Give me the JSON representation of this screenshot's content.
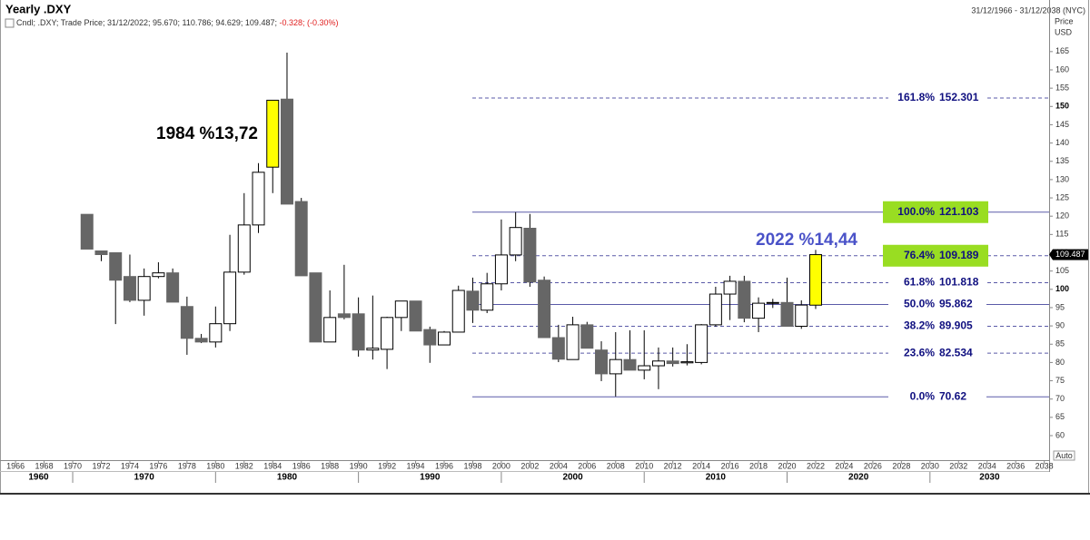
{
  "chart_data": {
    "type": "candlestick",
    "title": "Yearly .DXY",
    "date_range": "31/12/1966 - 31/12/2038 (NYC)",
    "legend_text": "Cndl; .DXY; Trade Price; 31/12/2022; 95.670; 110.786; 94.629; 109.487;",
    "legend_change": "-0.328; (-0.30%)",
    "y_axis_label": "Price",
    "y_axis_unit": "USD",
    "auto_label": "Auto",
    "x": [
      1971,
      1972,
      1973,
      1974,
      1975,
      1976,
      1977,
      1978,
      1979,
      1980,
      1981,
      1982,
      1983,
      1984,
      1985,
      1986,
      1987,
      1988,
      1989,
      1990,
      1991,
      1992,
      1993,
      1994,
      1995,
      1996,
      1997,
      1998,
      1999,
      2000,
      2001,
      2002,
      2003,
      2004,
      2005,
      2006,
      2007,
      2008,
      2009,
      2010,
      2011,
      2012,
      2013,
      2014,
      2015,
      2016,
      2017,
      2018,
      2019,
      2020,
      2021,
      2022
    ],
    "open": [
      120.5,
      110.5,
      110,
      103.5,
      97,
      103.5,
      104.5,
      95.3,
      86.6,
      85.6,
      90.6,
      104.7,
      117.6,
      133.4,
      152,
      124,
      104.5,
      85.6,
      93.3,
      93.3,
      83.4,
      83.6,
      92.3,
      96.8,
      89,
      84.8,
      88.3,
      99.5,
      94.3,
      101.5,
      109.4,
      116.7,
      102.5,
      86.8,
      80.8,
      90.3,
      83.4,
      76.9,
      80.8,
      77.9,
      79.1,
      80.4,
      79.9,
      80,
      90.3,
      98.7,
      102.2,
      92.1,
      96.2,
      96.4,
      89.9,
      95.67
    ],
    "high": [
      120.5,
      110.5,
      110,
      109.5,
      105.7,
      107.4,
      105.7,
      98,
      87.8,
      95.3,
      114.9,
      126.3,
      134.5,
      151.8,
      164.7,
      125,
      104.5,
      99.7,
      106.7,
      97.8,
      98.3,
      92.5,
      96.8,
      96.8,
      89.8,
      88.6,
      101,
      103.2,
      104.5,
      119.1,
      121.1,
      120.6,
      103.5,
      90.3,
      92.5,
      91.1,
      85.8,
      88.3,
      88.8,
      88.8,
      84.1,
      84.1,
      85,
      90.5,
      100.7,
      103.7,
      103.7,
      97.8,
      97.4,
      103.2,
      97,
      110.786
    ],
    "low": [
      111,
      107.7,
      90.5,
      96.5,
      92.8,
      103,
      96.5,
      82.1,
      85.3,
      84.1,
      88.6,
      104,
      115.4,
      126.3,
      123.3,
      103.7,
      85.6,
      85.6,
      91.8,
      81.6,
      80.8,
      78.2,
      88.6,
      88.6,
      79.9,
      84.8,
      88.3,
      90.8,
      93.5,
      99.7,
      107.7,
      100.7,
      86.8,
      80.1,
      80.8,
      83.9,
      74.9,
      70.7,
      77.9,
      75.4,
      72.7,
      78.9,
      79.2,
      79.5,
      89.8,
      91.6,
      91,
      88.3,
      94.9,
      89.9,
      89.2,
      94.629
    ],
    "close": [
      111,
      109.5,
      102.5,
      97,
      103.5,
      104.5,
      96.5,
      86.6,
      85.6,
      90.6,
      104.7,
      117.6,
      132,
      151.7,
      123.3,
      103.7,
      85.6,
      92.3,
      92.3,
      83.4,
      83.9,
      92.3,
      96.8,
      88.6,
      84.8,
      88.3,
      99.7,
      94.3,
      101.5,
      109.4,
      116.9,
      102,
      86.8,
      80.9,
      90.3,
      83.9,
      76.9,
      80.8,
      77.9,
      79.1,
      80.4,
      79.7,
      80.2,
      90.3,
      98.7,
      102.2,
      92.1,
      96.2,
      96.4,
      89.9,
      95.7,
      109.487
    ],
    "up_color": "#ffffff",
    "down_color": "#666666",
    "highlight_color": "#ffff00",
    "highlight_x": [
      1984,
      2022
    ],
    "xlim": [
      1965.23,
      2038.34
    ],
    "xticks": [
      1966,
      1968,
      1970,
      1972,
      1974,
      1976,
      1978,
      1980,
      1982,
      1984,
      1986,
      1988,
      1990,
      1992,
      1994,
      1996,
      1998,
      2000,
      2002,
      2004,
      2006,
      2008,
      2010,
      2012,
      2014,
      2016,
      2018,
      2020,
      2022,
      2024,
      2026,
      2028,
      2030,
      2032,
      2034,
      2036,
      2038
    ],
    "decade_ticks": [
      1960,
      1970,
      1980,
      1990,
      2000,
      2010,
      2020,
      2030
    ],
    "ylim": [
      53.3,
      172.9
    ],
    "yticks": [
      60,
      65,
      70,
      75,
      80,
      85,
      90,
      95,
      100,
      105,
      110,
      115,
      120,
      125,
      130,
      135,
      140,
      145,
      150,
      155,
      160,
      165
    ],
    "fib_color": "#5a5aa8",
    "fib_text_color": "#101080",
    "fib_highlight_color": "#99dd22",
    "fib_levels": [
      {
        "label": "161.8%",
        "value": 152.301,
        "style": "dashed",
        "highlight": false
      },
      {
        "label": "100.0%",
        "value": 121.103,
        "style": "solid",
        "highlight": true
      },
      {
        "label": "76.4%",
        "value": 109.189,
        "style": "dashed",
        "highlight": true
      },
      {
        "label": "61.8%",
        "value": 101.818,
        "style": "dashed",
        "highlight": false
      },
      {
        "label": "50.0%",
        "value": 95.862,
        "style": "solid",
        "highlight": false
      },
      {
        "label": "38.2%",
        "value": 89.905,
        "style": "dashed",
        "highlight": false
      },
      {
        "label": "23.6%",
        "value": 82.534,
        "style": "dashed",
        "highlight": false
      },
      {
        "label": "0.0%",
        "value": 70.62,
        "style": "solid",
        "highlight": false
      }
    ],
    "annotations": [
      {
        "text": "1984 %13,72",
        "color": "#000000"
      },
      {
        "text": "2022 %14,44",
        "color": "#4a52c8"
      }
    ]
  }
}
